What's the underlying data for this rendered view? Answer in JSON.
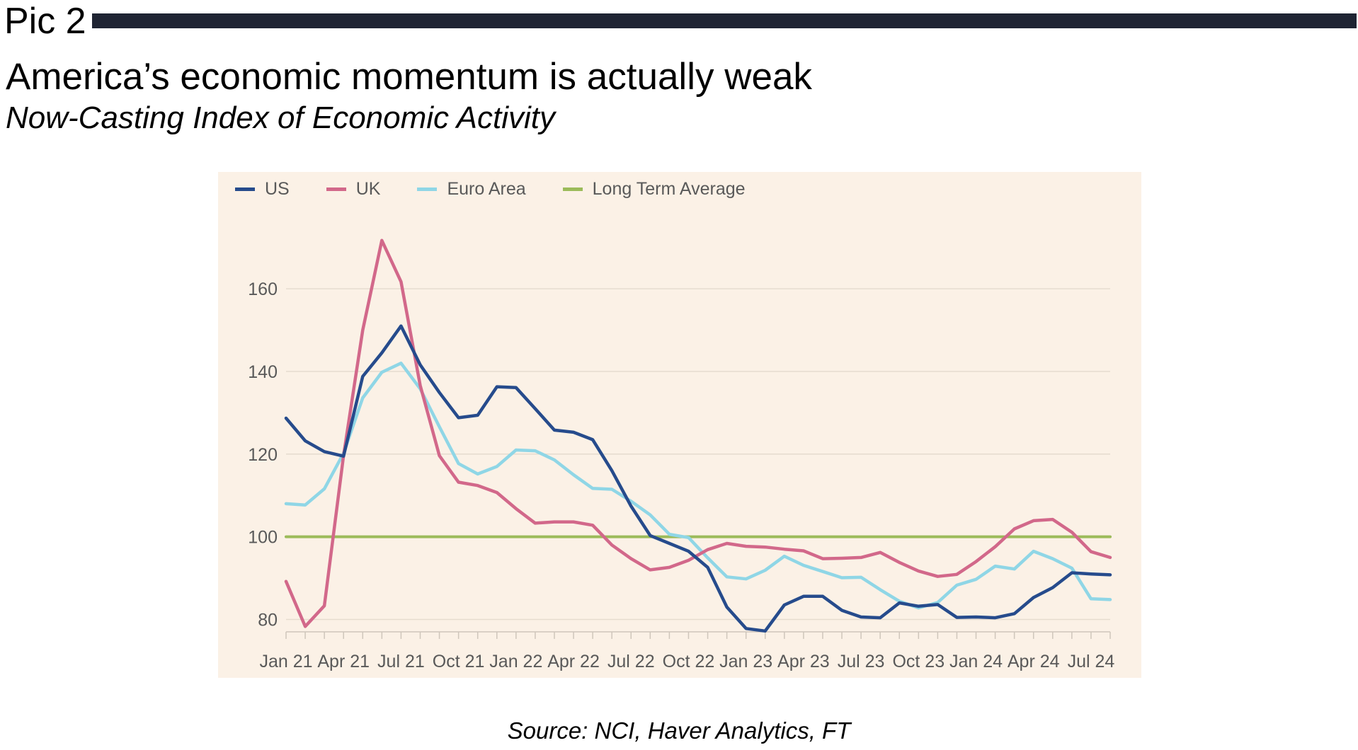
{
  "header": {
    "pic_label": "Pic 2",
    "title": "America’s economic momentum is actually weak",
    "subtitle": "Now-Casting Index of Economic Activity"
  },
  "footer": {
    "source": "Source: NCI, Haver Analytics, FT"
  },
  "colors": {
    "panel_bg": "#fbf1e6",
    "header_bar": "#1f2433"
  },
  "chart_data": {
    "type": "line",
    "title": "",
    "xlabel": "",
    "ylabel": "",
    "x_tick_labels": [
      "Jan 21",
      "Apr 21",
      "Jul 21",
      "Oct 21",
      "Jan 22",
      "Apr 22",
      "Jul 22",
      "Oct 22",
      "Jan 23",
      "Apr 23",
      "Jul 23",
      "Oct 23",
      "Jan 24",
      "Apr 24",
      "Jul 24"
    ],
    "x": [
      "2021-01",
      "2021-02",
      "2021-03",
      "2021-04",
      "2021-05",
      "2021-06",
      "2021-07",
      "2021-08",
      "2021-09",
      "2021-10",
      "2021-11",
      "2021-12",
      "2022-01",
      "2022-02",
      "2022-03",
      "2022-04",
      "2022-05",
      "2022-06",
      "2022-07",
      "2022-08",
      "2022-09",
      "2022-10",
      "2022-11",
      "2022-12",
      "2023-01",
      "2023-02",
      "2023-03",
      "2023-04",
      "2023-05",
      "2023-06",
      "2023-07",
      "2023-08",
      "2023-09",
      "2023-10",
      "2023-11",
      "2023-12",
      "2024-01",
      "2024-02",
      "2024-03",
      "2024-04",
      "2024-05",
      "2024-06",
      "2024-07",
      "2024-08"
    ],
    "y_ticks": [
      80,
      100,
      120,
      140,
      160
    ],
    "ylim": [
      77,
      178
    ],
    "grid": true,
    "legend_position": "top-left",
    "series": [
      {
        "name": "US",
        "color": "#264b8c",
        "values": [
          128.7,
          123.2,
          120.6,
          119.5,
          138.8,
          144.5,
          151.0,
          141.6,
          134.9,
          128.8,
          129.4,
          136.3,
          136.1,
          131.0,
          125.8,
          125.3,
          123.5,
          116.0,
          107.4,
          100.3,
          98.4,
          96.5,
          92.6,
          83.0,
          77.8,
          77.2,
          83.5,
          85.6,
          85.6,
          82.2,
          80.6,
          80.4,
          84.0,
          83.2,
          83.6,
          80.5,
          80.6,
          80.4,
          81.4,
          85.3,
          87.7,
          91.3,
          91.0,
          90.8
        ]
      },
      {
        "name": "UK",
        "color": "#d2688a",
        "values": [
          89.2,
          78.3,
          83.3,
          119.6,
          150.0,
          171.7,
          161.7,
          136.6,
          119.6,
          113.2,
          112.4,
          110.7,
          106.8,
          103.3,
          103.6,
          103.6,
          102.8,
          98.0,
          94.7,
          92.0,
          92.6,
          94.3,
          96.9,
          98.4,
          97.7,
          97.5,
          97.0,
          96.6,
          94.7,
          94.8,
          95.0,
          96.2,
          93.8,
          91.7,
          90.4,
          90.9,
          94.0,
          97.6,
          101.9,
          103.9,
          104.2,
          101.1,
          96.4,
          95.0
        ]
      },
      {
        "name": "Euro Area",
        "color": "#8fd6e6",
        "values": [
          108.0,
          107.7,
          111.6,
          120.2,
          133.6,
          139.8,
          142.0,
          135.8,
          126.6,
          117.7,
          115.2,
          117.0,
          121.0,
          120.8,
          118.6,
          115.0,
          111.7,
          111.5,
          108.6,
          105.3,
          100.6,
          99.8,
          94.9,
          90.3,
          89.8,
          91.9,
          95.3,
          93.1,
          91.6,
          90.1,
          90.2,
          87.2,
          84.4,
          82.8,
          84.1,
          88.3,
          89.7,
          92.9,
          92.2,
          96.5,
          94.7,
          92.4,
          85.0,
          84.8
        ]
      },
      {
        "name": "Long Term Average",
        "color": "#9cbb5a",
        "values": [
          100,
          100,
          100,
          100,
          100,
          100,
          100,
          100,
          100,
          100,
          100,
          100,
          100,
          100,
          100,
          100,
          100,
          100,
          100,
          100,
          100,
          100,
          100,
          100,
          100,
          100,
          100,
          100,
          100,
          100,
          100,
          100,
          100,
          100,
          100,
          100,
          100,
          100,
          100,
          100,
          100,
          100,
          100,
          100
        ]
      }
    ]
  }
}
